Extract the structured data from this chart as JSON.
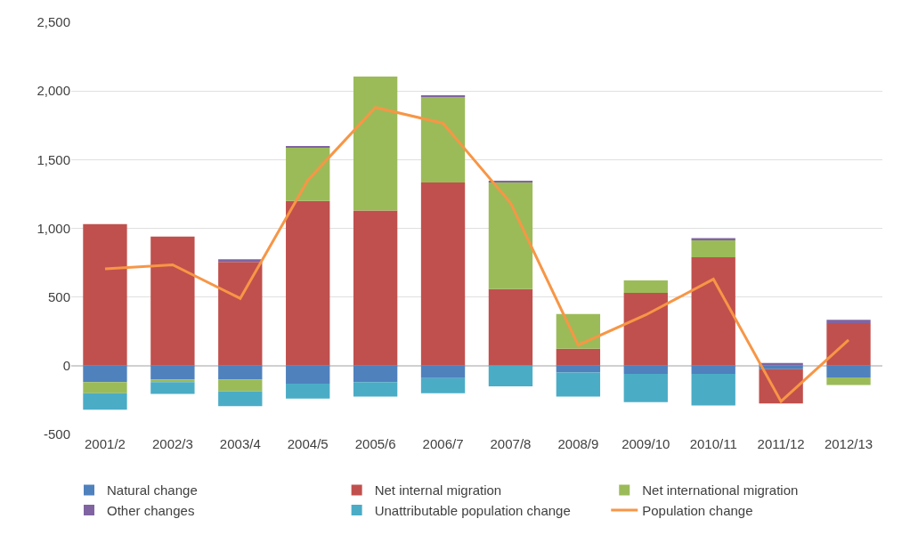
{
  "chart_data": {
    "type": "bar",
    "stacked": true,
    "categories": [
      "2001/2",
      "2002/3",
      "2003/4",
      "2004/5",
      "2005/6",
      "2006/7",
      "2007/8",
      "2008/9",
      "2009/10",
      "2010/11",
      "2011/12",
      "2012/13"
    ],
    "series": [
      {
        "name": "Natural change",
        "color": "#4f81bd",
        "values": [
          -120,
          -100,
          -100,
          -130,
          -120,
          -90,
          null,
          -50,
          -60,
          -60,
          -25,
          -85
        ]
      },
      {
        "name": "Net internal migration",
        "color": "#c0504d",
        "values": [
          1030,
          940,
          755,
          1200,
          1130,
          1334,
          557,
          123,
          531,
          790,
          -250,
          310
        ]
      },
      {
        "name": "Net international migration",
        "color": "#9bbb59",
        "values": [
          -80,
          -20,
          -85,
          390,
          975,
          622,
          777,
          253,
          90,
          123,
          0,
          -55
        ]
      },
      {
        "name": "Other changes",
        "color": "#8064a2",
        "values": [
          0,
          0,
          20,
          5,
          0,
          10,
          8,
          0,
          0,
          15,
          20,
          25
        ]
      },
      {
        "name": "Unattributable population change",
        "color": "#4bacc6",
        "values": [
          -120,
          -85,
          -110,
          -110,
          -105,
          -110,
          -150,
          -175,
          -205,
          -230,
          0,
          0
        ]
      },
      {
        "name": "Population change",
        "color": "#f79646",
        "type": "line",
        "values": [
          705,
          735,
          490,
          1350,
          1880,
          1765,
          1185,
          150,
          370,
          630,
          -260,
          188
        ]
      }
    ],
    "ylim": [
      -500,
      2500
    ],
    "yticks": [
      -500,
      0,
      500,
      {
        "value": 1000,
        "label": "1,000"
      },
      {
        "value": 1500,
        "label": "1,500"
      },
      {
        "value": 2000,
        "label": "2,000"
      },
      {
        "value": 2500,
        "label": "2,500"
      }
    ],
    "grid": "y",
    "legend": "bottom",
    "marker": "none",
    "line_style": "solid"
  }
}
